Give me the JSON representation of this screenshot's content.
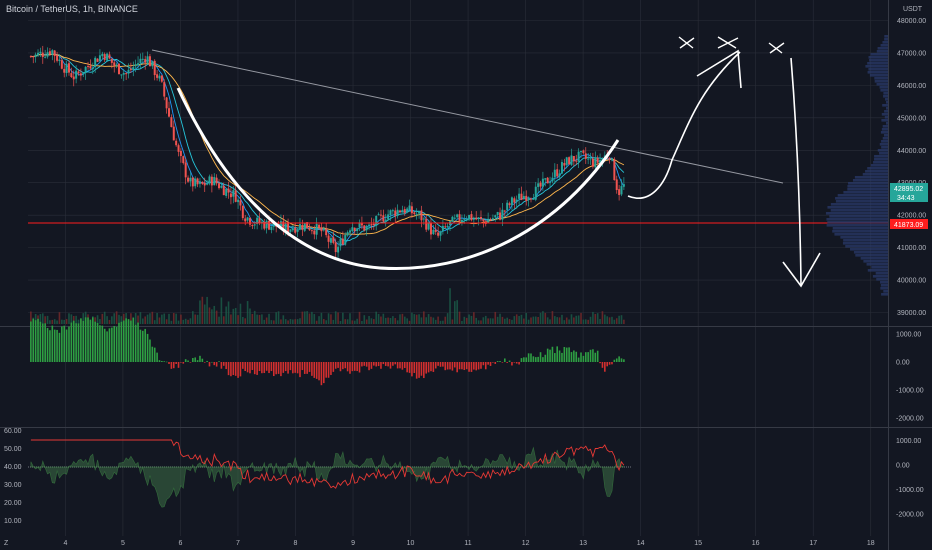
{
  "header": {
    "title": "Bitcoin / TetherUS, 1h, BINANCE"
  },
  "price_axis": {
    "currency": "USDT",
    "ticks": [
      "48000.00",
      "47000.00",
      "46000.00",
      "45000.00",
      "44000.00",
      "43000.00",
      "42000.00",
      "41000.00",
      "40000.00",
      "39000.00"
    ],
    "last_price": "42895.02",
    "countdown": "34:43",
    "level_price": "41873.09"
  },
  "time_axis": {
    "ticks": [
      "4",
      "5",
      "6",
      "7",
      "8",
      "9",
      "10",
      "11",
      "12",
      "13",
      "14",
      "15",
      "16",
      "17",
      "18"
    ]
  },
  "macd_axis": {
    "ticks": [
      "1000.00",
      "0.00",
      "-1000.00",
      "-2000.00"
    ]
  },
  "osc_axis": {
    "left_ticks": [
      "60.00",
      "50.00",
      "40.00",
      "30.00",
      "20.00",
      "10.00"
    ],
    "right_ticks": [
      "1000.00",
      "0.00",
      "-1000.00",
      "-2000.00"
    ]
  },
  "colors": {
    "bg": "#131722",
    "up": "#26a69a",
    "down": "#ef5350",
    "level": "#ff1e1e",
    "grid": "#2a2e39"
  },
  "chart_data": {
    "type": "candlestick",
    "title": "Bitcoin / TetherUS, 1h, BINANCE",
    "y_range": [
      38800,
      48200
    ],
    "x_range": [
      3.35,
      18.3
    ],
    "close_series": [
      {
        "t": 3.5,
        "p": 46900
      },
      {
        "t": 3.8,
        "p": 47100
      },
      {
        "t": 4.0,
        "p": 46600
      },
      {
        "t": 4.2,
        "p": 46250
      },
      {
        "t": 4.5,
        "p": 46700
      },
      {
        "t": 4.7,
        "p": 47000
      },
      {
        "t": 4.9,
        "p": 46600
      },
      {
        "t": 5.1,
        "p": 46350
      },
      {
        "t": 5.3,
        "p": 46700
      },
      {
        "t": 5.45,
        "p": 46900
      },
      {
        "t": 5.7,
        "p": 46100
      },
      {
        "t": 5.85,
        "p": 45000
      },
      {
        "t": 6.0,
        "p": 43900
      },
      {
        "t": 6.2,
        "p": 43000
      },
      {
        "t": 6.4,
        "p": 42900
      },
      {
        "t": 6.6,
        "p": 43100
      },
      {
        "t": 6.8,
        "p": 42800
      },
      {
        "t": 7.0,
        "p": 42600
      },
      {
        "t": 7.15,
        "p": 42000
      },
      {
        "t": 7.3,
        "p": 41800
      },
      {
        "t": 7.6,
        "p": 41700
      },
      {
        "t": 7.9,
        "p": 41600
      },
      {
        "t": 8.2,
        "p": 41700
      },
      {
        "t": 8.5,
        "p": 41500
      },
      {
        "t": 8.75,
        "p": 40900
      },
      {
        "t": 9.0,
        "p": 41700
      },
      {
        "t": 9.3,
        "p": 41600
      },
      {
        "t": 9.6,
        "p": 42000
      },
      {
        "t": 9.9,
        "p": 42200
      },
      {
        "t": 10.2,
        "p": 42000
      },
      {
        "t": 10.5,
        "p": 41300
      },
      {
        "t": 10.7,
        "p": 41700
      },
      {
        "t": 11.0,
        "p": 42000
      },
      {
        "t": 11.3,
        "p": 41800
      },
      {
        "t": 11.6,
        "p": 42000
      },
      {
        "t": 11.8,
        "p": 42400
      },
      {
        "t": 12.0,
        "p": 42600
      },
      {
        "t": 12.2,
        "p": 42700
      },
      {
        "t": 12.5,
        "p": 43200
      },
      {
        "t": 12.8,
        "p": 43700
      },
      {
        "t": 13.0,
        "p": 43800
      },
      {
        "t": 13.25,
        "p": 43600
      },
      {
        "t": 13.5,
        "p": 43900
      },
      {
        "t": 13.65,
        "p": 42700
      },
      {
        "t": 13.75,
        "p": 42900
      }
    ]
  }
}
